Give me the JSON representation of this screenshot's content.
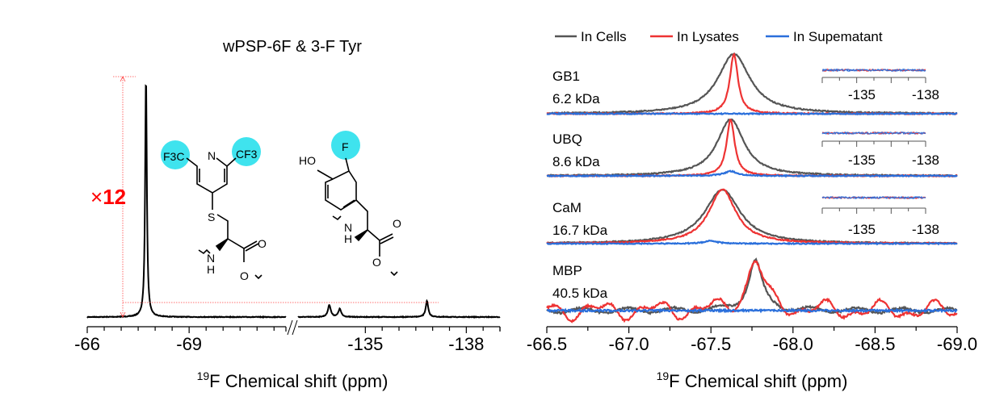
{
  "chart_data": [
    {
      "type": "line",
      "title": "wPSP-6F & 3-F Tyr",
      "xlabel_sup": "19",
      "xlabel": "F Chemical shift (ppm)",
      "x_axis_break": true,
      "segments": [
        {
          "xlim": [
            -66.0,
            -71.85
          ],
          "ticks": [
            -66,
            -69
          ],
          "tick_labels": [
            "-66",
            "-69"
          ]
        },
        {
          "xlim": [
            -133.0,
            -139.0
          ],
          "ticks": [
            -135,
            -138
          ],
          "tick_labels": [
            "-135",
            "-138"
          ]
        }
      ],
      "peaks": [
        {
          "x": -67.73,
          "height": 12.0,
          "width": 0.03
        },
        {
          "x": -133.93,
          "height": 0.6,
          "width": 0.05
        },
        {
          "x": -134.24,
          "height": 0.4,
          "width": 0.05
        },
        {
          "x": -136.83,
          "height": 0.8,
          "width": 0.045
        }
      ],
      "annotation": {
        "prefix": "×",
        "value": "12",
        "color": "#ff0000"
      },
      "structures": {
        "wpsp": {
          "cf3_left": "F3C",
          "cf3_right": "CF3",
          "n": "N",
          "s": "S",
          "nh": "N",
          "h": "H",
          "o1": "O",
          "o2": "O"
        },
        "tyr": {
          "ho": "HO",
          "f": "F",
          "nh": "N",
          "h": "H",
          "o1": "O",
          "o2": "O"
        },
        "highlight_color": "#3fe3ee"
      }
    },
    {
      "type": "line",
      "xlabel_sup": "19",
      "xlabel": "F Chemical shift (ppm)",
      "xlim": [
        -66.5,
        -69.0
      ],
      "ticks": [
        -66.5,
        -67.0,
        -67.5,
        -68.0,
        -68.5,
        -69.0
      ],
      "tick_labels": [
        "-66.5",
        "-67.0",
        "-67.5",
        "-68.0",
        "-68.5",
        "-69.0"
      ],
      "legend_position": "top",
      "series": [
        {
          "name": "In Cells",
          "color": "#555555"
        },
        {
          "name": "In Lysates",
          "color": "#ee3333"
        },
        {
          "name": "In Supematant",
          "color": "#2a6fdb"
        }
      ],
      "panels": [
        {
          "label": "GB1",
          "mass": "6.2 kDa",
          "cells": {
            "x": -67.64,
            "height": 1.0,
            "width": 0.12
          },
          "lysates": {
            "x": -67.64,
            "height": 1.0,
            "width": 0.03
          },
          "supernatant": {
            "x": -67.64,
            "height": 0.0,
            "width": 0.05
          },
          "inset": {
            "tick_labels": [
              "-135",
              "-138"
            ]
          }
        },
        {
          "label": "UBQ",
          "mass": "8.6 kDa",
          "cells": {
            "x": -67.62,
            "height": 1.0,
            "width": 0.1
          },
          "lysates": {
            "x": -67.62,
            "height": 1.0,
            "width": 0.03
          },
          "supernatant": {
            "x": -67.62,
            "height": 0.08,
            "width": 0.05
          },
          "inset": {
            "tick_labels": [
              "-135",
              "-138"
            ]
          }
        },
        {
          "label": "CaM",
          "mass": "16.7 kDa",
          "cells": {
            "x": -67.57,
            "height": 1.0,
            "width": 0.13
          },
          "lysates": {
            "x": -67.57,
            "height": 1.0,
            "width": 0.1
          },
          "supernatant": {
            "x": -67.5,
            "height": 0.05,
            "width": 0.05
          },
          "inset": {
            "tick_labels": [
              "-135",
              "-138"
            ]
          }
        },
        {
          "label": "MBP",
          "mass": "40.5 kDa",
          "cells": {
            "x": -67.77,
            "height": 1.0,
            "width": 0.05
          },
          "lysates": {
            "x": -67.77,
            "height": 1.0,
            "width": 0.06
          },
          "supernatant": {
            "x": -67.77,
            "height": 0.0,
            "width": 0.05
          }
        }
      ]
    }
  ]
}
